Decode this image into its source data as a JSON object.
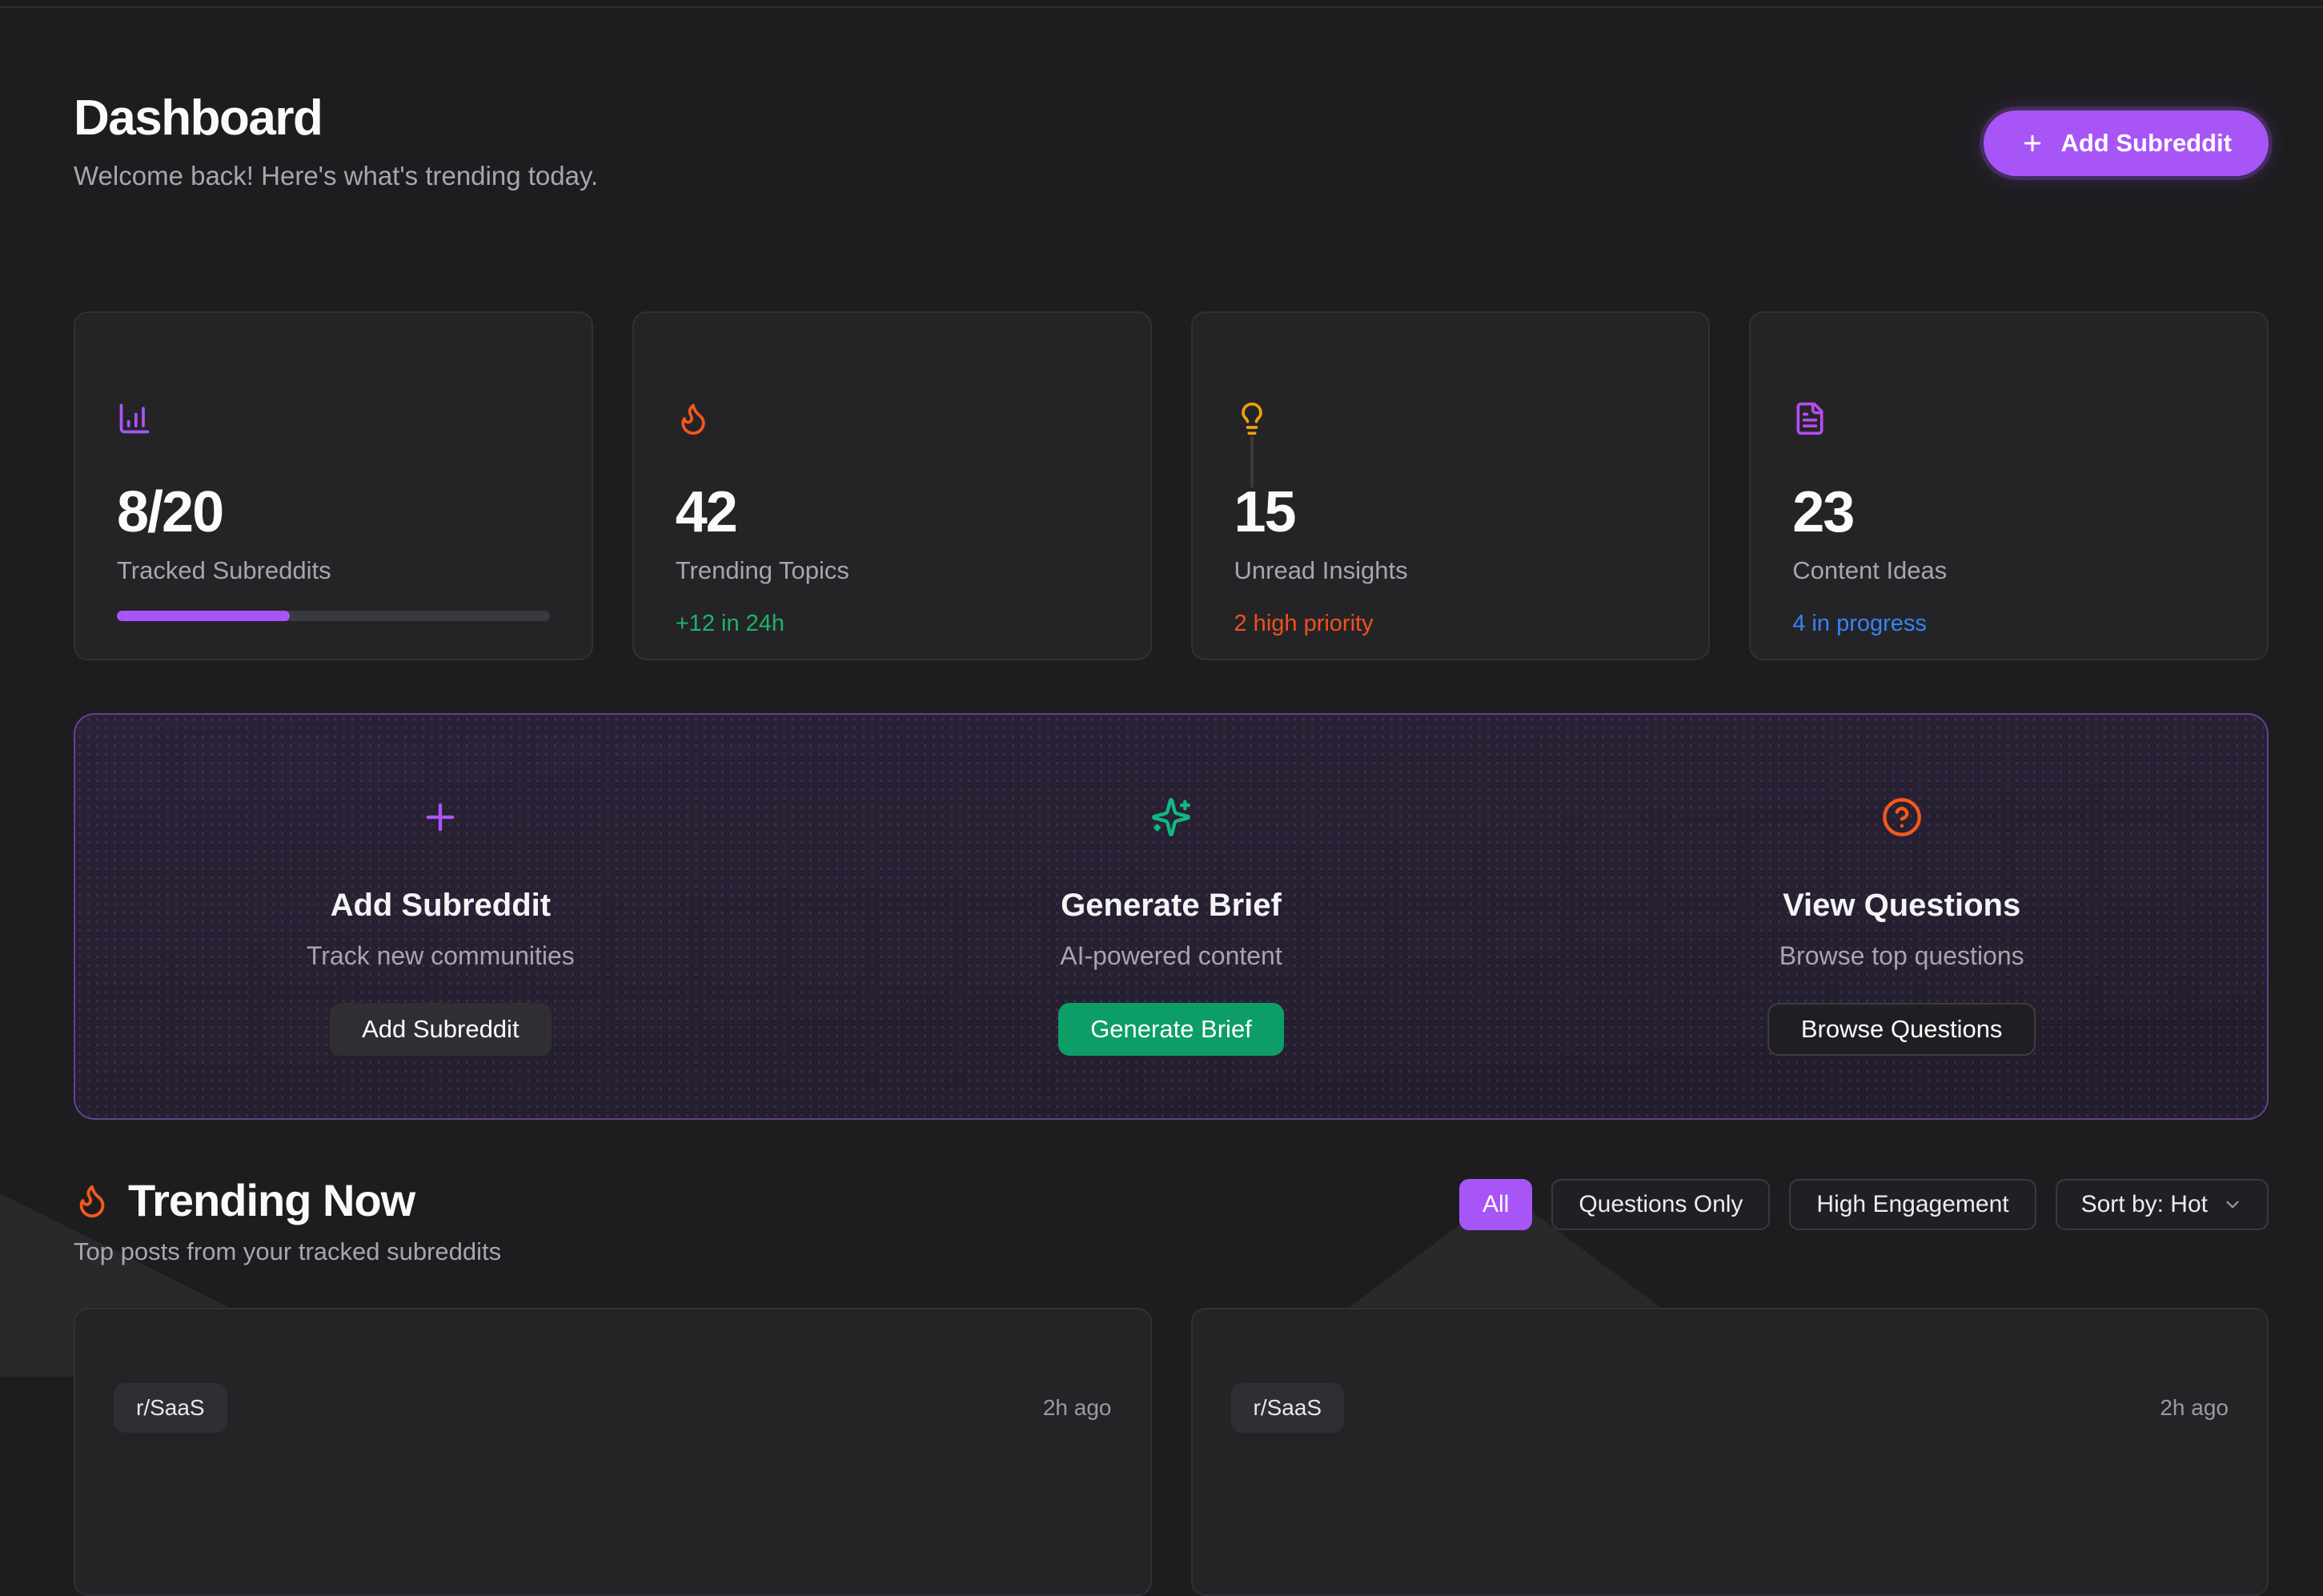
{
  "header": {
    "title": "Dashboard",
    "subtitle": "Welcome back! Here's what's trending today.",
    "add_button_label": "Add Subreddit"
  },
  "stats": [
    {
      "icon": "chart-column-icon",
      "icon_color": "#a855f7",
      "value": "8/20",
      "label": "Tracked Subreddits",
      "progress_percent": 40,
      "progress_color": "#a855f7"
    },
    {
      "icon": "flame-icon",
      "icon_color": "#f4581c",
      "value": "42",
      "label": "Trending Topics",
      "sub": "+12 in 24h",
      "sub_color": "#1db36b"
    },
    {
      "icon": "lightbulb-icon",
      "icon_color": "#f0a10c",
      "value": "15",
      "label": "Unread Insights",
      "sub": "2 high priority",
      "sub_color": "#f0511e"
    },
    {
      "icon": "file-text-icon",
      "icon_color": "#b84bf2",
      "value": "23",
      "label": "Content Ideas",
      "sub": "4 in progress",
      "sub_color": "#3b82f6"
    }
  ],
  "quick_actions": [
    {
      "icon": "plus-icon",
      "icon_color": "#a855f7",
      "title": "Add Subreddit",
      "subtitle": "Track new communities",
      "button_label": "Add Subreddit",
      "button_style": "neutral"
    },
    {
      "icon": "sparkles-icon",
      "icon_color": "#10b981",
      "title": "Generate Brief",
      "subtitle": "AI-powered content",
      "button_label": "Generate Brief",
      "button_style": "green"
    },
    {
      "icon": "help-circle-icon",
      "icon_color": "#f4581c",
      "title": "View Questions",
      "subtitle": "Browse top questions",
      "button_label": "Browse Questions",
      "button_style": "outline"
    }
  ],
  "trending": {
    "icon": "flame-icon",
    "title": "Trending Now",
    "subtitle": "Top posts from your tracked subreddits",
    "filters": [
      {
        "label": "All",
        "active": true
      },
      {
        "label": "Questions Only",
        "active": false
      },
      {
        "label": "High Engagement",
        "active": false
      }
    ],
    "sort_label": "Sort by: Hot"
  },
  "posts": [
    {
      "subreddit": "r/SaaS",
      "time": "2h ago"
    },
    {
      "subreddit": "r/SaaS",
      "time": "2h ago"
    }
  ],
  "colors": {
    "page_bg": "#1d1d1f",
    "card_bg": "#242427",
    "card_border": "#313135",
    "accent_purple": "#a855f7",
    "green_button": "#0d9e68",
    "green_text": "#1db36b",
    "orange": "#f4581c",
    "amber": "#f0a10c",
    "blue": "#3b82f6",
    "muted_text": "#a6a6ad",
    "panel_border": "#7a55b8"
  }
}
